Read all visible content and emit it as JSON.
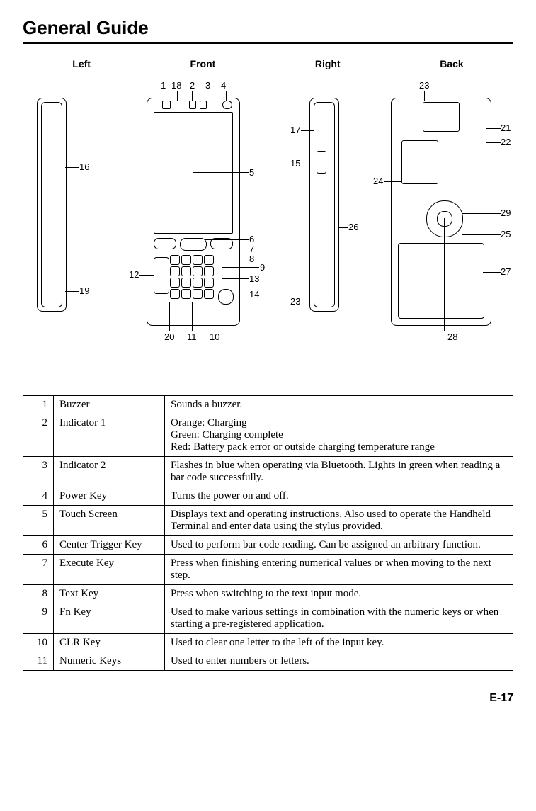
{
  "title": "General Guide",
  "views": {
    "left": "Left",
    "front": "Front",
    "right": "Right",
    "back": "Back"
  },
  "callouts": {
    "front_top": [
      "1",
      "18",
      "2",
      "3",
      "4"
    ],
    "front_right": [
      "5",
      "6",
      "7",
      "8",
      "9",
      "13",
      "14"
    ],
    "front_left": [
      "12"
    ],
    "front_bottom": [
      "20",
      "11",
      "10"
    ],
    "left_side": [
      "16",
      "19"
    ],
    "right_side": [
      "17",
      "15",
      "26",
      "23"
    ],
    "back_top": [
      "23"
    ],
    "back_left": [
      "24"
    ],
    "back_right": [
      "21",
      "22",
      "29",
      "25",
      "27"
    ],
    "back_bottom": [
      "28"
    ]
  },
  "table": [
    {
      "num": "1",
      "name": "Buzzer",
      "desc": "Sounds a buzzer."
    },
    {
      "num": "2",
      "name": "Indicator 1",
      "desc": "Orange: Charging\nGreen: Charging complete\nRed: Battery pack error or outside charging temperature range"
    },
    {
      "num": "3",
      "name": "Indicator 2",
      "desc": "Flashes in blue when operating via Bluetooth. Lights in green when reading a bar code successfully."
    },
    {
      "num": "4",
      "name": "Power Key",
      "desc": "Turns the power on and off."
    },
    {
      "num": "5",
      "name": "Touch Screen",
      "desc": "Displays text and operating instructions. Also used to operate the Handheld Terminal and enter data using the stylus provided."
    },
    {
      "num": "6",
      "name": "Center Trigger Key",
      "desc": "Used to perform bar code reading. Can be assigned an arbitrary function."
    },
    {
      "num": "7",
      "name": "Execute Key",
      "desc": "Press when finishing entering numerical values or when moving to the next step."
    },
    {
      "num": "8",
      "name": "Text Key",
      "desc": "Press when switching to the text input mode."
    },
    {
      "num": "9",
      "name": "Fn Key",
      "desc": "Used to make various settings in combination with the numeric keys or when starting a pre-registered application."
    },
    {
      "num": "10",
      "name": "CLR Key",
      "desc": "Used to clear one letter to the left of the input key."
    },
    {
      "num": "11",
      "name": "Numeric Keys",
      "desc": "Used to enter numbers or letters."
    }
  ],
  "page_number": "E-17"
}
